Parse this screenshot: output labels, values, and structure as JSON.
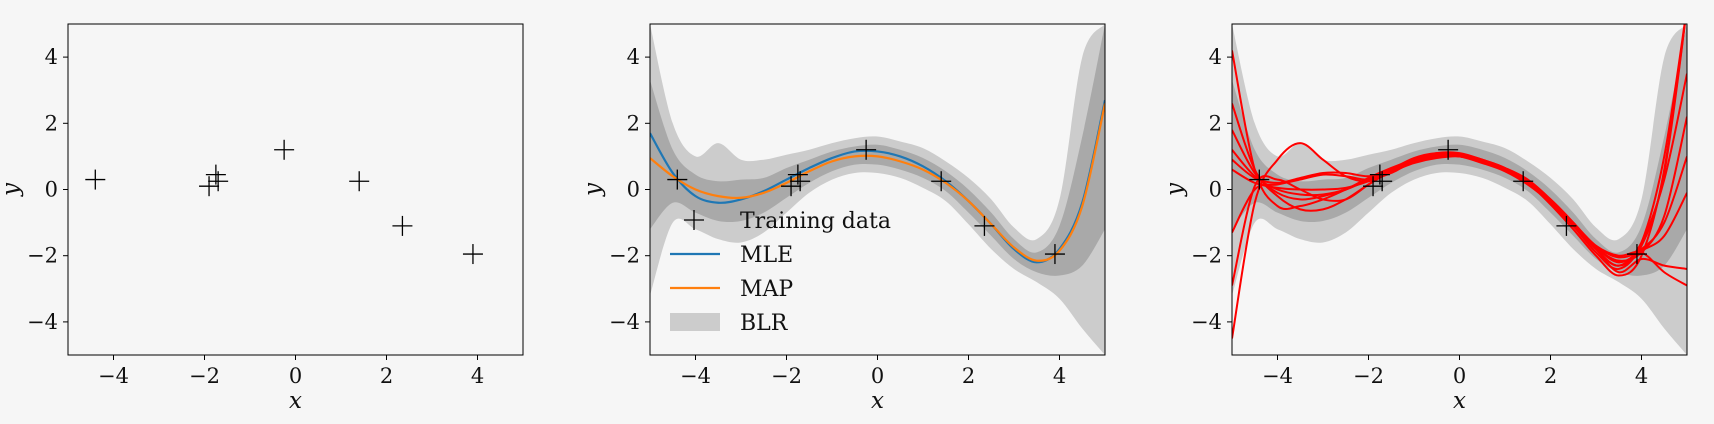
{
  "chart_data": [
    {
      "type": "scatter",
      "xlabel": "x",
      "ylabel": "y",
      "xlim": [
        -5,
        5
      ],
      "ylim": [
        -5,
        5
      ],
      "xticks": [
        "−4",
        "−2",
        "0",
        "2",
        "4"
      ],
      "yticks": [
        "−4",
        "−2",
        "0",
        "2",
        "4"
      ],
      "grid": false,
      "series": [
        {
          "kind": "points",
          "marker": "+",
          "color": "#000000",
          "x": [
            -4.4,
            -1.9,
            -1.75,
            -1.7,
            -0.25,
            1.4,
            2.35,
            3.9
          ],
          "y": [
            0.3,
            0.1,
            0.45,
            0.25,
            1.2,
            0.25,
            -1.1,
            -1.95
          ]
        }
      ]
    },
    {
      "type": "line",
      "xlabel": "x",
      "ylabel": "y",
      "xlim": [
        -5,
        5
      ],
      "ylim": [
        -5,
        5
      ],
      "xticks": [
        "−4",
        "−2",
        "0",
        "2",
        "4"
      ],
      "yticks": [
        "−4",
        "−2",
        "0",
        "2",
        "4"
      ],
      "grid": false,
      "legend": {
        "placement": "lower-left",
        "entries": [
          {
            "label": "Training data",
            "kind": "marker"
          },
          {
            "label": "MLE",
            "kind": "line",
            "color": "#1f77b4"
          },
          {
            "label": "MAP",
            "kind": "line",
            "color": "#ff7f0e"
          },
          {
            "label": "BLR",
            "kind": "band",
            "color": "#cccccc"
          }
        ]
      },
      "bands": {
        "x": [
          -5,
          -4.5,
          -4,
          -3.5,
          -3,
          -2.5,
          -2,
          -1.5,
          -1,
          -0.5,
          0,
          0.5,
          1,
          1.5,
          2,
          2.5,
          3,
          3.5,
          4,
          4.5,
          5
        ],
        "mean": [
          0.9,
          0.35,
          -0.1,
          -0.35,
          -0.35,
          -0.15,
          0.2,
          0.55,
          0.85,
          1.05,
          1.05,
          0.9,
          0.65,
          0.25,
          -0.35,
          -1.05,
          -1.8,
          -2.2,
          -1.8,
          -0.3,
          2.7
        ],
        "inner_lo": [
          -1.2,
          -0.4,
          -0.7,
          -0.95,
          -0.95,
          -0.7,
          -0.25,
          0.2,
          0.55,
          0.75,
          0.75,
          0.6,
          0.35,
          -0.05,
          -0.7,
          -1.4,
          -2.1,
          -2.5,
          -2.6,
          -2.3,
          -1.2
        ],
        "inner_hi": [
          3.3,
          1.2,
          0.45,
          0.25,
          0.3,
          0.35,
          0.65,
          0.9,
          1.15,
          1.3,
          1.35,
          1.2,
          0.95,
          0.55,
          0.0,
          -0.7,
          -1.5,
          -1.9,
          -1.1,
          1.6,
          5.0
        ],
        "outer_lo": [
          -3.2,
          -1.0,
          -1.2,
          -1.5,
          -1.6,
          -1.3,
          -0.7,
          -0.1,
          0.3,
          0.5,
          0.5,
          0.35,
          0.05,
          -0.35,
          -1.05,
          -1.8,
          -2.4,
          -2.8,
          -3.3,
          -4.2,
          -5.0
        ],
        "outer_hi": [
          5.0,
          2.0,
          1.0,
          1.4,
          0.9,
          0.9,
          1.05,
          1.2,
          1.4,
          1.55,
          1.6,
          1.45,
          1.25,
          0.85,
          0.35,
          -0.3,
          -1.15,
          -1.5,
          -0.3,
          4.0,
          5.0
        ]
      },
      "series": [
        {
          "name": "MLE",
          "color": "#1f77b4",
          "x": [
            -5,
            -4.5,
            -4,
            -3.5,
            -3,
            -2.5,
            -2,
            -1.5,
            -1,
            -0.5,
            0,
            0.5,
            1,
            1.5,
            2,
            2.5,
            3,
            3.5,
            4,
            4.5,
            5
          ],
          "y": [
            1.7,
            0.5,
            -0.2,
            -0.4,
            -0.3,
            -0.05,
            0.3,
            0.65,
            0.95,
            1.15,
            1.15,
            1.0,
            0.7,
            0.25,
            -0.35,
            -1.05,
            -1.8,
            -2.2,
            -1.8,
            -0.4,
            2.7
          ]
        },
        {
          "name": "MAP",
          "color": "#ff7f0e",
          "x": [
            -5,
            -4.5,
            -4,
            -3.5,
            -3,
            -2.5,
            -2,
            -1.5,
            -1,
            -0.5,
            0,
            0.5,
            1,
            1.5,
            2,
            2.5,
            3,
            3.5,
            4,
            4.5,
            5
          ],
          "y": [
            0.95,
            0.4,
            0.0,
            -0.2,
            -0.25,
            -0.1,
            0.2,
            0.55,
            0.85,
            1.0,
            1.0,
            0.85,
            0.6,
            0.2,
            -0.35,
            -1.05,
            -1.75,
            -2.15,
            -1.85,
            -0.5,
            2.6
          ]
        },
        {
          "name": "Training data",
          "kind": "points",
          "marker": "+",
          "color": "#000000",
          "x": [
            -4.4,
            -1.9,
            -1.75,
            -1.7,
            -0.25,
            1.4,
            2.35,
            3.9
          ],
          "y": [
            0.3,
            0.1,
            0.45,
            0.25,
            1.2,
            0.25,
            -1.1,
            -1.95
          ]
        }
      ]
    },
    {
      "type": "line",
      "xlabel": "x",
      "ylabel": "y",
      "xlim": [
        -5,
        5
      ],
      "ylim": [
        -5,
        5
      ],
      "xticks": [
        "−4",
        "−2",
        "0",
        "2",
        "4"
      ],
      "yticks": [
        "−4",
        "−2",
        "0",
        "2",
        "4"
      ],
      "grid": false,
      "bands": {
        "x": [
          -5,
          -4.5,
          -4,
          -3.5,
          -3,
          -2.5,
          -2,
          -1.5,
          -1,
          -0.5,
          0,
          0.5,
          1,
          1.5,
          2,
          2.5,
          3,
          3.5,
          4,
          4.5,
          5
        ],
        "inner_lo": [
          -1.2,
          -0.4,
          -0.7,
          -0.95,
          -0.95,
          -0.7,
          -0.25,
          0.2,
          0.55,
          0.75,
          0.75,
          0.6,
          0.35,
          -0.05,
          -0.7,
          -1.4,
          -2.1,
          -2.5,
          -2.6,
          -2.3,
          -1.2
        ],
        "inner_hi": [
          3.3,
          1.2,
          0.45,
          0.25,
          0.3,
          0.35,
          0.65,
          0.9,
          1.15,
          1.3,
          1.35,
          1.2,
          0.95,
          0.55,
          0.0,
          -0.7,
          -1.5,
          -1.9,
          -1.1,
          1.6,
          5.0
        ],
        "outer_lo": [
          -3.2,
          -1.0,
          -1.2,
          -1.5,
          -1.6,
          -1.3,
          -0.7,
          -0.1,
          0.3,
          0.5,
          0.5,
          0.35,
          0.05,
          -0.35,
          -1.05,
          -1.8,
          -2.4,
          -2.8,
          -3.3,
          -4.2,
          -5.0
        ],
        "outer_hi": [
          5.0,
          2.0,
          1.0,
          1.4,
          0.9,
          0.9,
          1.05,
          1.2,
          1.4,
          1.55,
          1.6,
          1.45,
          1.25,
          0.85,
          0.35,
          -0.3,
          -1.15,
          -1.5,
          -0.3,
          4.0,
          5.0
        ]
      },
      "samples_x": [
        -5,
        -4.5,
        -4,
        -3.5,
        -3,
        -2.5,
        -2,
        -1.5,
        -1,
        -0.5,
        0,
        0.5,
        1,
        1.5,
        2,
        2.5,
        3,
        3.5,
        4,
        4.5,
        5
      ],
      "samples": [
        [
          4.2,
          0.6,
          -0.5,
          -0.5,
          -0.3,
          0.0,
          0.35,
          0.65,
          0.9,
          1.05,
          1.05,
          0.9,
          0.6,
          0.2,
          -0.4,
          -1.1,
          -1.9,
          -2.4,
          -1.6,
          1.0,
          5.5
        ],
        [
          -4.5,
          -0.4,
          0.9,
          1.4,
          0.9,
          0.4,
          0.25,
          0.55,
          0.9,
          1.05,
          1.0,
          0.8,
          0.55,
          0.15,
          -0.4,
          -1.1,
          -1.8,
          -2.5,
          -2.1,
          -2.3,
          -2.4
        ],
        [
          -2.9,
          0.1,
          0.3,
          0.0,
          -0.3,
          -0.3,
          0.15,
          0.6,
          0.95,
          1.1,
          1.05,
          0.85,
          0.6,
          0.2,
          -0.3,
          -1.0,
          -1.8,
          -2.3,
          -1.7,
          0.5,
          5.5
        ],
        [
          1.8,
          0.5,
          -0.1,
          -0.3,
          -0.2,
          0.0,
          0.3,
          0.6,
          0.85,
          1.0,
          1.0,
          0.85,
          0.6,
          0.25,
          -0.3,
          -1.05,
          -1.75,
          -2.2,
          -1.85,
          -1.4,
          -0.1
        ],
        [
          -1.3,
          0.0,
          0.15,
          0.3,
          0.45,
          0.4,
          0.3,
          0.5,
          0.85,
          1.05,
          1.05,
          0.9,
          0.65,
          0.3,
          -0.3,
          -1.05,
          -1.7,
          -2.0,
          -1.9,
          -2.5,
          -2.9
        ],
        [
          0.6,
          0.2,
          0.05,
          0.0,
          0.0,
          0.05,
          0.25,
          0.55,
          0.85,
          1.0,
          1.0,
          0.85,
          0.6,
          0.2,
          -0.35,
          -1.05,
          -1.75,
          -2.15,
          -1.9,
          -0.8,
          2.2
        ],
        [
          2.6,
          0.6,
          -0.2,
          -0.6,
          -0.6,
          -0.3,
          0.15,
          0.55,
          0.9,
          1.1,
          1.1,
          0.9,
          0.65,
          0.2,
          -0.45,
          -1.2,
          -2.0,
          -2.6,
          -2.0,
          0.6,
          5.5
        ],
        [
          0.9,
          0.35,
          0.2,
          0.35,
          0.5,
          0.5,
          0.4,
          0.55,
          0.8,
          0.95,
          1.0,
          0.85,
          0.6,
          0.25,
          -0.3,
          -1.0,
          -1.7,
          -2.05,
          -1.8,
          -1.0,
          1.0
        ],
        [
          1.2,
          0.4,
          0.0,
          -0.15,
          -0.15,
          0.0,
          0.3,
          0.6,
          0.9,
          1.05,
          1.05,
          0.88,
          0.6,
          0.22,
          -0.35,
          -1.05,
          -1.8,
          -2.3,
          -1.6,
          0.3,
          3.5
        ]
      ],
      "series": [
        {
          "name": "Training data",
          "kind": "points",
          "marker": "+",
          "color": "#000000",
          "x": [
            -4.4,
            -1.9,
            -1.75,
            -1.7,
            -0.25,
            1.4,
            2.35,
            3.9
          ],
          "y": [
            0.3,
            0.1,
            0.45,
            0.25,
            1.2,
            0.25,
            -1.1,
            -1.95
          ]
        }
      ]
    }
  ],
  "colors": {
    "background": "#f6f6f6",
    "band_outer": "#cccccc",
    "band_inner": "#9e9e9e",
    "sample": "#ff0000",
    "axis": "#000000"
  }
}
